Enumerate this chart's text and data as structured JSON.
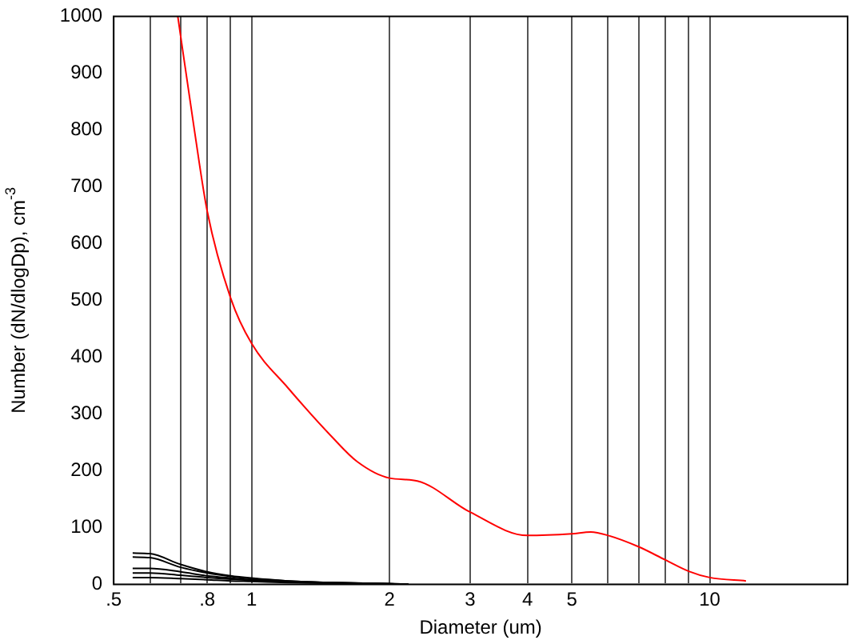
{
  "chart_data": {
    "type": "line",
    "xlabel": "Diameter (um)",
    "ylabel": "Number (dN/dlogDp), cm$^{-3}$",
    "log": "x",
    "grid": "x",
    "legend": false,
    "marker": "none",
    "line_style": "solid",
    "xlim": [
      0.5,
      20
    ],
    "ylim": [
      0,
      1000
    ],
    "xticks": [
      {
        "value": 0.5,
        "label": ".5"
      },
      {
        "value": 0.6,
        "label": null
      },
      {
        "value": 0.7,
        "label": null
      },
      {
        "value": 0.8,
        "label": ".8"
      },
      {
        "value": 0.9,
        "label": null
      },
      1,
      2,
      3,
      4,
      5,
      {
        "value": 6,
        "label": null
      },
      {
        "value": 7,
        "label": null
      },
      {
        "value": 8,
        "label": null
      },
      {
        "value": 9,
        "label": null
      },
      10
    ],
    "yticks": [
      0,
      100,
      200,
      300,
      400,
      500,
      600,
      700,
      800,
      900,
      1000
    ],
    "series": [
      {
        "color": "#ff0000",
        "x": [
          0.69,
          0.75,
          0.8,
          0.9,
          1,
          1.2,
          1.5,
          1.7,
          2,
          2.3,
          3,
          4,
          5,
          5.5,
          6,
          7,
          8,
          9,
          10,
          12
        ],
        "values": [
          1000,
          800,
          657,
          504,
          424,
          346,
          259,
          216,
          187,
          182,
          127,
          86,
          89,
          92,
          86,
          66,
          43,
          23,
          12,
          6
        ]
      },
      {
        "color": "#000000",
        "x": [
          0.55,
          0.6,
          0.7,
          0.8,
          0.9,
          1,
          1.2,
          1.5,
          2,
          2.2
        ],
        "values": [
          55,
          54,
          35,
          22,
          15,
          11,
          6,
          3,
          1,
          0
        ]
      },
      {
        "color": "#000000",
        "x": [
          0.55,
          0.6,
          0.7,
          0.8,
          0.9,
          1,
          1.2,
          1.5,
          2,
          2.2
        ],
        "values": [
          48,
          47,
          30,
          20,
          14,
          10,
          6,
          3,
          1,
          0
        ]
      },
      {
        "color": "#000000",
        "x": [
          0.55,
          0.6,
          0.7,
          0.8,
          0.9,
          1,
          1.2,
          1.5,
          2,
          2.2
        ],
        "values": [
          28,
          28,
          22,
          15,
          11,
          8,
          5,
          3,
          1,
          0
        ]
      },
      {
        "color": "#000000",
        "x": [
          0.55,
          0.6,
          0.7,
          0.8,
          0.9,
          1,
          1.2,
          1.5,
          2,
          2.2
        ],
        "values": [
          20,
          20,
          16,
          12,
          9,
          7,
          4,
          2,
          1,
          0
        ]
      },
      {
        "color": "#000000",
        "x": [
          0.55,
          0.6,
          0.7,
          0.8,
          0.9,
          1,
          1.2,
          1.5,
          2,
          2.2
        ],
        "values": [
          12,
          12,
          10,
          8,
          6,
          5,
          3,
          2,
          1,
          0
        ]
      }
    ]
  }
}
